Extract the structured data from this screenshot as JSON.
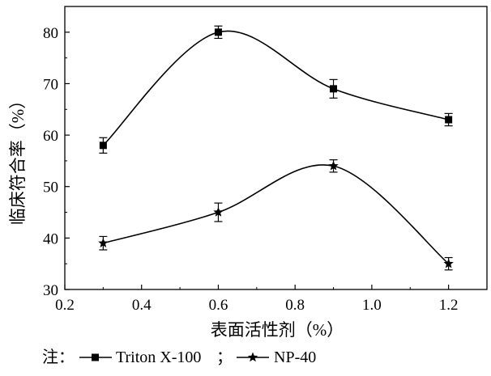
{
  "chart_data": {
    "type": "line",
    "xlabel": "表面活性剂（%）",
    "ylabel": "临床符合率（%）",
    "xlim": [
      0.2,
      1.3
    ],
    "ylim": [
      30,
      85
    ],
    "xticks": [
      0.2,
      0.4,
      0.6,
      0.8,
      1.0,
      1.2
    ],
    "xtick_labels": [
      "0.2",
      "0.4",
      "0.6",
      "0.8",
      "1.0",
      "1.2"
    ],
    "yticks": [
      30,
      40,
      50,
      60,
      70,
      80
    ],
    "ytick_labels": [
      "30",
      "40",
      "50",
      "60",
      "70",
      "80"
    ],
    "x": [
      0.3,
      0.6,
      0.9,
      1.2
    ],
    "series": [
      {
        "name": "Triton X-100",
        "marker": "square",
        "values": [
          58,
          80,
          69,
          63
        ],
        "errors": [
          1.5,
          1.2,
          1.8,
          1.2
        ]
      },
      {
        "name": "NP-40",
        "marker": "star",
        "values": [
          39,
          45,
          54,
          35
        ],
        "errors": [
          1.3,
          1.8,
          1.2,
          1.2
        ]
      }
    ],
    "grid": false,
    "legend_position": "bottom"
  },
  "legend": {
    "prefix": "注：",
    "separator": "；",
    "items": [
      "Triton X-100",
      "NP-40"
    ]
  },
  "colors": {
    "line": "#000000",
    "background": "#ffffff"
  }
}
